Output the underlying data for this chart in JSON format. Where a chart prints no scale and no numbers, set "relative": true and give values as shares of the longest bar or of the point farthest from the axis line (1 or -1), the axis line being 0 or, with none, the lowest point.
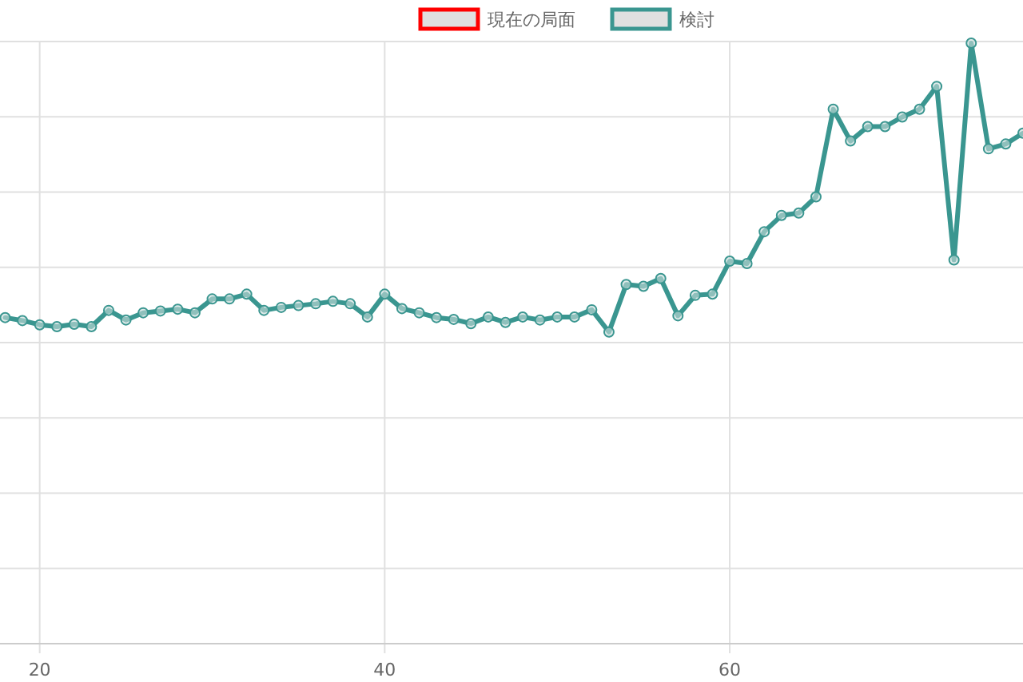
{
  "chart_data": {
    "type": "line",
    "relative": true,
    "x": [
      18,
      19,
      20,
      21,
      22,
      23,
      24,
      25,
      26,
      27,
      28,
      29,
      30,
      31,
      32,
      33,
      34,
      35,
      36,
      37,
      38,
      39,
      40,
      41,
      42,
      43,
      44,
      45,
      46,
      47,
      48,
      49,
      50,
      51,
      52,
      53,
      54,
      55,
      56,
      57,
      58,
      59,
      60,
      61,
      62,
      63,
      64,
      65,
      66,
      67,
      68,
      69,
      70,
      71,
      72,
      73,
      74,
      75,
      76,
      77
    ],
    "xlim": [
      17.7,
      77
    ],
    "xticks": [
      20,
      40,
      60
    ],
    "grid": true,
    "legend": "top",
    "marker": "circle",
    "line_style": "solid",
    "series": [
      {
        "name": "現在の局面",
        "color": "#ff0000",
        "values": [
          null,
          null,
          null,
          null,
          null,
          null,
          null,
          null,
          null,
          null,
          null,
          null,
          null,
          null,
          null,
          null,
          null,
          null,
          null,
          null,
          null,
          null,
          null,
          null,
          null,
          null,
          null,
          null,
          null,
          null,
          null,
          null,
          null,
          null,
          null,
          null,
          null,
          null,
          null,
          null,
          null,
          null,
          null,
          null,
          null,
          null,
          null,
          null,
          null,
          null,
          null,
          null,
          null,
          null,
          null,
          null,
          null,
          null,
          null,
          null
        ]
      },
      {
        "name": "検討",
        "color": "#3a9690",
        "values": [
          0.543,
          0.538,
          0.531,
          0.528,
          0.532,
          0.528,
          0.555,
          0.539,
          0.551,
          0.554,
          0.557,
          0.551,
          0.574,
          0.574,
          0.582,
          0.555,
          0.56,
          0.563,
          0.566,
          0.57,
          0.566,
          0.544,
          0.582,
          0.558,
          0.551,
          0.543,
          0.54,
          0.533,
          0.544,
          0.535,
          0.544,
          0.539,
          0.544,
          0.544,
          0.556,
          0.519,
          0.598,
          0.595,
          0.608,
          0.546,
          0.58,
          0.582,
          0.637,
          0.633,
          0.686,
          0.713,
          0.717,
          0.744,
          0.89,
          0.837,
          0.861,
          0.861,
          0.877,
          0.89,
          0.928,
          0.639,
          1,
          0.824,
          0.832,
          0.85
        ]
      }
    ]
  }
}
